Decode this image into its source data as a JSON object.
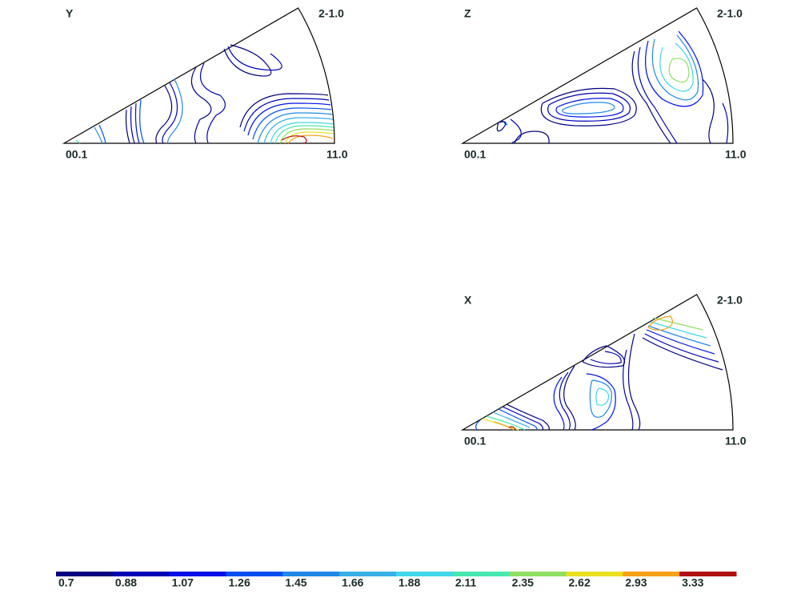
{
  "panels": [
    {
      "label": "Y",
      "top": "2-1.0",
      "origin": "00.1",
      "right": "11.0"
    },
    {
      "label": "Z",
      "top": "2-1.0",
      "origin": "00.1",
      "right": "11.0"
    },
    {
      "label": "X",
      "top": "2-1.0",
      "origin": "00.1",
      "right": "11.0"
    }
  ],
  "colorbar": {
    "ticks": [
      0.7,
      0.88,
      1.07,
      1.26,
      1.45,
      1.66,
      1.88,
      2.11,
      2.35,
      2.62,
      2.93,
      3.33
    ],
    "colors": [
      "#000080",
      "#0000b4",
      "#0010e6",
      "#0050f0",
      "#2088e8",
      "#38b0e8",
      "#40d8e8",
      "#48e8b0",
      "#90e060",
      "#e8e020",
      "#f8a018",
      "#b01010"
    ]
  }
}
